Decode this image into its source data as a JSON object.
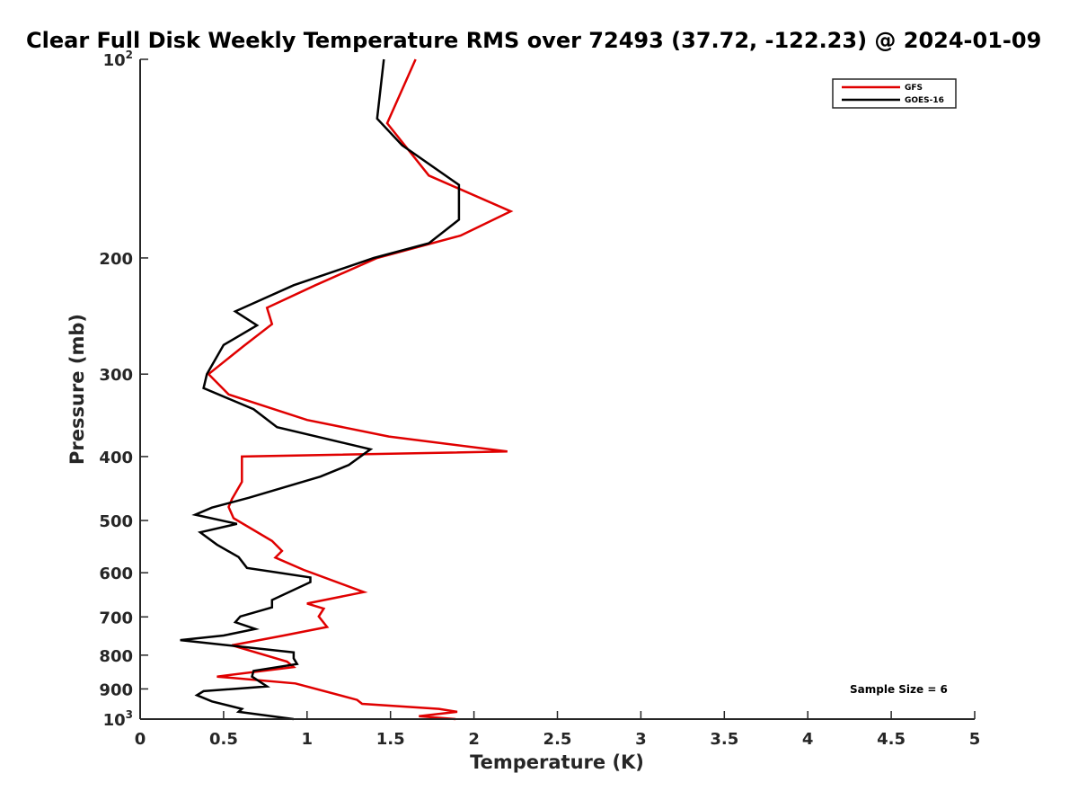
{
  "chart_data": {
    "type": "line",
    "title": "Clear Full Disk Weekly Temperature RMS over 72493 (37.72, -122.23) @ 2024-01-09",
    "xlabel": "Temperature (K)",
    "ylabel": "Pressure (mb)",
    "xlim": [
      0,
      5
    ],
    "ylim": [
      100,
      1000
    ],
    "y_scale": "log",
    "y_reversed": true,
    "grid": false,
    "legend_position": "top-right",
    "x_ticks": [
      {
        "value": 0,
        "label": "0"
      },
      {
        "value": 0.5,
        "label": "0.5"
      },
      {
        "value": 1,
        "label": "1"
      },
      {
        "value": 1.5,
        "label": "1.5"
      },
      {
        "value": 2,
        "label": "2"
      },
      {
        "value": 2.5,
        "label": "2.5"
      },
      {
        "value": 3,
        "label": "3"
      },
      {
        "value": 3.5,
        "label": "3.5"
      },
      {
        "value": 4,
        "label": "4"
      },
      {
        "value": 4.5,
        "label": "4.5"
      },
      {
        "value": 5,
        "label": "5"
      }
    ],
    "y_ticks": [
      {
        "value": 100,
        "label": "10",
        "sup": "2"
      },
      {
        "value": 200,
        "label": "200"
      },
      {
        "value": 300,
        "label": "300"
      },
      {
        "value": 400,
        "label": "400"
      },
      {
        "value": 500,
        "label": "500"
      },
      {
        "value": 600,
        "label": "600"
      },
      {
        "value": 700,
        "label": "700"
      },
      {
        "value": 800,
        "label": "800"
      },
      {
        "value": 900,
        "label": "900"
      },
      {
        "value": 1000,
        "label": "10",
        "sup": "3"
      }
    ],
    "annotation": "Sample Size = 6",
    "series": [
      {
        "name": "GFS",
        "color": "#e00000",
        "points": [
          [
            1.65,
            100
          ],
          [
            1.48,
            125
          ],
          [
            1.73,
            150
          ],
          [
            2.22,
            170
          ],
          [
            1.92,
            185
          ],
          [
            1.42,
            200
          ],
          [
            1.05,
            220
          ],
          [
            0.76,
            238
          ],
          [
            0.79,
            252
          ],
          [
            0.62,
            272
          ],
          [
            0.41,
            300
          ],
          [
            0.53,
            322
          ],
          [
            1.0,
            352
          ],
          [
            1.49,
            373
          ],
          [
            2.2,
            393
          ],
          [
            0.61,
            400
          ],
          [
            0.61,
            437
          ],
          [
            0.55,
            464
          ],
          [
            0.53,
            477
          ],
          [
            0.56,
            496
          ],
          [
            0.79,
            537
          ],
          [
            0.85,
            556
          ],
          [
            0.81,
            569
          ],
          [
            0.98,
            594
          ],
          [
            1.34,
            642
          ],
          [
            1.0,
            668
          ],
          [
            1.1,
            680
          ],
          [
            1.07,
            699
          ],
          [
            1.12,
            725
          ],
          [
            0.86,
            747
          ],
          [
            0.55,
            773
          ],
          [
            0.88,
            818
          ],
          [
            0.92,
            834
          ],
          [
            0.46,
            862
          ],
          [
            0.93,
            883
          ],
          [
            1.3,
            935
          ],
          [
            1.33,
            948
          ],
          [
            1.79,
            965
          ],
          [
            1.9,
            975
          ],
          [
            1.67,
            990
          ],
          [
            1.89,
            1000
          ]
        ]
      },
      {
        "name": "GOES-16",
        "color": "#000000",
        "points": [
          [
            1.46,
            100
          ],
          [
            1.42,
            123
          ],
          [
            1.57,
            135
          ],
          [
            1.91,
            155
          ],
          [
            1.91,
            175
          ],
          [
            1.73,
            190
          ],
          [
            1.4,
            200
          ],
          [
            0.92,
            220
          ],
          [
            0.57,
            241
          ],
          [
            0.7,
            253
          ],
          [
            0.5,
            271
          ],
          [
            0.4,
            300
          ],
          [
            0.38,
            315
          ],
          [
            0.68,
            339
          ],
          [
            0.82,
            361
          ],
          [
            1.38,
            390
          ],
          [
            1.25,
            412
          ],
          [
            1.08,
            429
          ],
          [
            0.65,
            462
          ],
          [
            0.43,
            478
          ],
          [
            0.33,
            490
          ],
          [
            0.58,
            506
          ],
          [
            0.36,
            521
          ],
          [
            0.46,
            544
          ],
          [
            0.59,
            568
          ],
          [
            0.64,
            590
          ],
          [
            1.02,
            610
          ],
          [
            1.02,
            620
          ],
          [
            0.79,
            660
          ],
          [
            0.79,
            677
          ],
          [
            0.6,
            699
          ],
          [
            0.57,
            713
          ],
          [
            0.69,
            730
          ],
          [
            0.5,
            747
          ],
          [
            0.24,
            759
          ],
          [
            0.92,
            792
          ],
          [
            0.92,
            809
          ],
          [
            0.94,
            825
          ],
          [
            0.68,
            845
          ],
          [
            0.67,
            862
          ],
          [
            0.76,
            892
          ],
          [
            0.38,
            907
          ],
          [
            0.34,
            920
          ],
          [
            0.43,
            940
          ],
          [
            0.61,
            965
          ],
          [
            0.59,
            975
          ],
          [
            0.92,
            1000
          ]
        ]
      }
    ]
  }
}
